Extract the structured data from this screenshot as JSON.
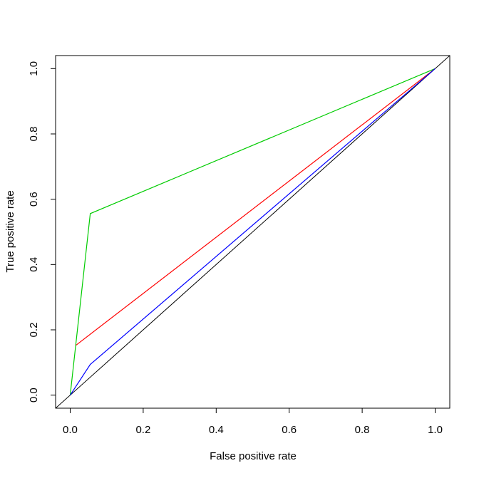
{
  "chart_data": {
    "type": "line",
    "xlabel": "False positive rate",
    "ylabel": "True positive rate",
    "xlim": [
      -0.04,
      1.04
    ],
    "ylim": [
      -0.04,
      1.04
    ],
    "xticks": [
      {
        "value": 0,
        "label": "0.0"
      },
      0.2,
      0.4,
      0.6,
      0.8,
      {
        "value": 1,
        "label": "1.0"
      }
    ],
    "yticks": [
      {
        "value": 0,
        "label": "0.0"
      },
      0.2,
      0.4,
      0.6,
      0.8,
      {
        "value": 1,
        "label": "1.0"
      }
    ],
    "abline": {
      "intercept": 0,
      "slope": 1,
      "color": "#000000"
    },
    "series": [
      {
        "color": "#00cc00",
        "x": [
          0,
          0.055,
          1
        ],
        "values": [
          0,
          0.556,
          1
        ]
      },
      {
        "color": "#ff0000",
        "x": [
          0.016,
          1
        ],
        "values": [
          0.153,
          1
        ]
      },
      {
        "color": "#0000ff",
        "x": [
          0,
          0.055,
          1
        ],
        "values": [
          0,
          0.094,
          1
        ]
      }
    ]
  }
}
